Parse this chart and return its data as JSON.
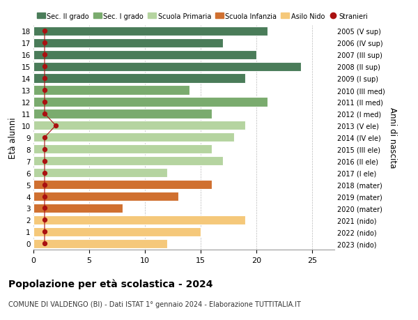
{
  "ages": [
    18,
    17,
    16,
    15,
    14,
    13,
    12,
    11,
    10,
    9,
    8,
    7,
    6,
    5,
    4,
    3,
    2,
    1,
    0
  ],
  "values": [
    21,
    17,
    20,
    24,
    19,
    14,
    21,
    16,
    19,
    18,
    16,
    17,
    12,
    16,
    13,
    8,
    19,
    15,
    12
  ],
  "stranieri": [
    1,
    1,
    1,
    1,
    1,
    1,
    1,
    1,
    2,
    1,
    1,
    1,
    1,
    1,
    1,
    1,
    1,
    1,
    1
  ],
  "right_labels": [
    "2005 (V sup)",
    "2006 (IV sup)",
    "2007 (III sup)",
    "2008 (II sup)",
    "2009 (I sup)",
    "2010 (III med)",
    "2011 (II med)",
    "2012 (I med)",
    "2013 (V ele)",
    "2014 (IV ele)",
    "2015 (III ele)",
    "2016 (II ele)",
    "2017 (I ele)",
    "2018 (mater)",
    "2019 (mater)",
    "2020 (mater)",
    "2021 (nido)",
    "2022 (nido)",
    "2023 (nido)"
  ],
  "bar_colors_by_age": {
    "18": "#4a7c59",
    "17": "#4a7c59",
    "16": "#4a7c59",
    "15": "#4a7c59",
    "14": "#4a7c59",
    "13": "#7aab6e",
    "12": "#7aab6e",
    "11": "#7aab6e",
    "10": "#b5d4a0",
    "9": "#b5d4a0",
    "8": "#b5d4a0",
    "7": "#b5d4a0",
    "6": "#b5d4a0",
    "5": "#d07030",
    "4": "#d07030",
    "3": "#d07030",
    "2": "#f5c87a",
    "1": "#f5c87a",
    "0": "#f5c87a"
  },
  "stranieri_color": "#aa1111",
  "stranieri_line_color": "#aa1111",
  "title": "Popolazione per età scolastica - 2024",
  "subtitle": "COMUNE DI VALDENGO (BI) - Dati ISTAT 1° gennaio 2024 - Elaborazione TUTTITALIA.IT",
  "ylabel_left": "Età alunni",
  "ylabel_right": "Anni di nascita",
  "xlim": [
    0,
    27
  ],
  "legend_labels": [
    "Sec. II grado",
    "Sec. I grado",
    "Scuola Primaria",
    "Scuola Infanzia",
    "Asilo Nido",
    "Stranieri"
  ],
  "legend_colors": [
    "#4a7c59",
    "#7aab6e",
    "#b5d4a0",
    "#d07030",
    "#f5c87a",
    "#aa1111"
  ],
  "background_color": "#ffffff",
  "grid_color": "#bbbbbb"
}
